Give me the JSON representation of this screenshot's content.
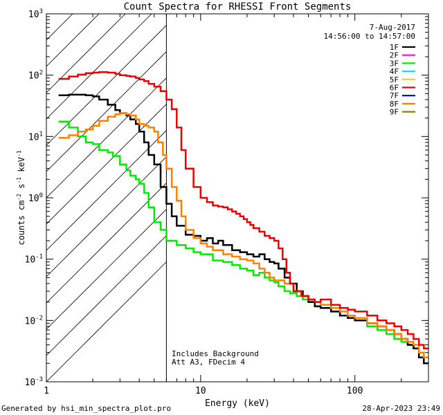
{
  "chart_data": {
    "type": "line",
    "title": "Count Spectra for RHESSI Front Segments",
    "xlabel": "Energy (keV)",
    "ylabel_parts": [
      "counts cm",
      "-2",
      " s",
      "-1",
      " keV",
      "-1"
    ],
    "xscale": "log",
    "yscale": "log",
    "xlim": [
      1,
      300
    ],
    "ylim": [
      0.001,
      1000
    ],
    "x_ticks": [
      {
        "value": 1,
        "label": "1"
      },
      {
        "value": 10,
        "label": "10"
      },
      {
        "value": 100,
        "label": "100"
      }
    ],
    "y_ticks": [
      {
        "value": 0.001,
        "base": "10",
        "exp": "-3"
      },
      {
        "value": 0.01,
        "base": "10",
        "exp": "-2"
      },
      {
        "value": 0.1,
        "base": "10",
        "exp": "-1"
      },
      {
        "value": 1,
        "base": "10",
        "exp": "0"
      },
      {
        "value": 10,
        "base": "10",
        "exp": "1"
      },
      {
        "value": 100,
        "base": "10",
        "exp": "2"
      },
      {
        "value": 1000,
        "base": "10",
        "exp": "3"
      }
    ],
    "date": "7-Aug-2017",
    "time_range": "14:56:00 to 14:57:00",
    "notes": [
      "Includes Background",
      "Att A3, FDecim  4"
    ],
    "footer_left": "Generated by hsi_min_spectra_plot.pro",
    "footer_right": "28-Apr-2023 23:49",
    "hatch_boundary_keV": 6,
    "legend": [
      {
        "label": "1F",
        "color": "#000000"
      },
      {
        "label": "2F",
        "color": "#ff00ff"
      },
      {
        "label": "3F",
        "color": "#00ee00"
      },
      {
        "label": "4F",
        "color": "#00e5ff"
      },
      {
        "label": "5F",
        "color": "#ffcc00"
      },
      {
        "label": "6F",
        "color": "#ee0000"
      },
      {
        "label": "7F",
        "color": "#0000cc"
      },
      {
        "label": "8F",
        "color": "#ff8000"
      },
      {
        "label": "9F",
        "color": "#808000"
      }
    ],
    "series": [
      {
        "name": "3F",
        "color": "#00ee00",
        "width": 2.5,
        "points": [
          [
            1.2,
            17.5
          ],
          [
            1.4,
            14
          ],
          [
            1.6,
            10
          ],
          [
            1.8,
            8
          ],
          [
            2.0,
            7.5
          ],
          [
            2.2,
            6
          ],
          [
            2.5,
            5.5
          ],
          [
            2.7,
            4.8
          ],
          [
            3.0,
            3.5
          ],
          [
            3.3,
            2.8
          ],
          [
            3.5,
            2.3
          ],
          [
            3.8,
            2.0
          ],
          [
            4.0,
            1.7
          ],
          [
            4.3,
            1.2
          ],
          [
            4.6,
            0.7
          ],
          [
            5.0,
            0.4
          ],
          [
            5.5,
            0.3
          ],
          [
            6.0,
            0.2
          ],
          [
            7.0,
            0.17
          ],
          [
            8.0,
            0.15
          ],
          [
            9.0,
            0.13
          ],
          [
            10,
            0.12
          ],
          [
            12,
            0.095
          ],
          [
            14,
            0.09
          ],
          [
            16,
            0.08
          ],
          [
            18,
            0.07
          ],
          [
            20,
            0.065
          ],
          [
            22,
            0.055
          ],
          [
            24,
            0.06
          ],
          [
            26,
            0.05
          ],
          [
            28,
            0.045
          ],
          [
            30,
            0.042
          ],
          [
            32,
            0.036
          ],
          [
            35,
            0.03
          ],
          [
            38,
            0.028
          ],
          [
            42,
            0.025
          ],
          [
            46,
            0.022
          ],
          [
            50,
            0.02
          ],
          [
            55,
            0.017
          ],
          [
            60,
            0.016
          ],
          [
            70,
            0.014
          ],
          [
            80,
            0.012
          ],
          [
            90,
            0.011
          ],
          [
            100,
            0.01
          ],
          [
            120,
            0.008
          ],
          [
            140,
            0.007
          ],
          [
            160,
            0.006
          ],
          [
            180,
            0.005
          ],
          [
            200,
            0.0045
          ],
          [
            220,
            0.004
          ],
          [
            240,
            0.0035
          ],
          [
            260,
            0.003
          ],
          [
            280,
            0.002
          ]
        ]
      },
      {
        "name": "1F",
        "color": "#000000",
        "width": 2.5,
        "points": [
          [
            1.2,
            47
          ],
          [
            1.4,
            48
          ],
          [
            1.6,
            48
          ],
          [
            1.8,
            47
          ],
          [
            2.0,
            45
          ],
          [
            2.2,
            40
          ],
          [
            2.5,
            33
          ],
          [
            2.8,
            27
          ],
          [
            3.0,
            24
          ],
          [
            3.3,
            22
          ],
          [
            3.5,
            19
          ],
          [
            3.8,
            16
          ],
          [
            4.0,
            12
          ],
          [
            4.3,
            8
          ],
          [
            4.6,
            5
          ],
          [
            5.0,
            3.5
          ],
          [
            5.5,
            1.5
          ],
          [
            6.0,
            0.8
          ],
          [
            6.5,
            0.5
          ],
          [
            7.0,
            0.35
          ],
          [
            8.0,
            0.25
          ],
          [
            9.0,
            0.24
          ],
          [
            10,
            0.2
          ],
          [
            11,
            0.22
          ],
          [
            12,
            0.18
          ],
          [
            13,
            0.2
          ],
          [
            14,
            0.17
          ],
          [
            16,
            0.14
          ],
          [
            18,
            0.13
          ],
          [
            20,
            0.12
          ],
          [
            22,
            0.11
          ],
          [
            24,
            0.12
          ],
          [
            26,
            0.1
          ],
          [
            28,
            0.09
          ],
          [
            30,
            0.085
          ],
          [
            32,
            0.07
          ],
          [
            35,
            0.05
          ],
          [
            38,
            0.04
          ],
          [
            42,
            0.03
          ],
          [
            46,
            0.025
          ],
          [
            50,
            0.02
          ],
          [
            55,
            0.017
          ],
          [
            60,
            0.016
          ],
          [
            70,
            0.014
          ],
          [
            80,
            0.012
          ],
          [
            90,
            0.011
          ],
          [
            100,
            0.01
          ],
          [
            120,
            0.009
          ],
          [
            140,
            0.008
          ],
          [
            160,
            0.007
          ],
          [
            180,
            0.006
          ],
          [
            200,
            0.005
          ],
          [
            220,
            0.004
          ],
          [
            240,
            0.0035
          ],
          [
            260,
            0.0025
          ],
          [
            280,
            0.002
          ]
        ]
      },
      {
        "name": "8F",
        "color": "#ff8000",
        "width": 2.5,
        "points": [
          [
            1.2,
            9.5
          ],
          [
            1.4,
            10.5
          ],
          [
            1.6,
            12
          ],
          [
            1.8,
            13
          ],
          [
            2.0,
            15
          ],
          [
            2.2,
            18
          ],
          [
            2.5,
            21
          ],
          [
            2.8,
            23
          ],
          [
            3.0,
            24
          ],
          [
            3.3,
            23
          ],
          [
            3.5,
            22
          ],
          [
            3.8,
            19
          ],
          [
            4.0,
            16
          ],
          [
            4.3,
            15
          ],
          [
            4.6,
            14
          ],
          [
            5.0,
            12
          ],
          [
            5.3,
            8
          ],
          [
            5.7,
            5
          ],
          [
            6.0,
            3
          ],
          [
            6.5,
            1.5
          ],
          [
            7.0,
            0.9
          ],
          [
            7.5,
            0.5
          ],
          [
            8.0,
            0.3
          ],
          [
            9.0,
            0.22
          ],
          [
            10,
            0.18
          ],
          [
            11,
            0.16
          ],
          [
            12,
            0.14
          ],
          [
            14,
            0.12
          ],
          [
            16,
            0.11
          ],
          [
            18,
            0.1
          ],
          [
            20,
            0.095
          ],
          [
            22,
            0.085
          ],
          [
            24,
            0.07
          ],
          [
            26,
            0.06
          ],
          [
            28,
            0.05
          ],
          [
            30,
            0.045
          ],
          [
            35,
            0.04
          ],
          [
            40,
            0.03
          ],
          [
            45,
            0.025
          ],
          [
            50,
            0.022
          ],
          [
            55,
            0.02
          ],
          [
            60,
            0.018
          ],
          [
            70,
            0.016
          ],
          [
            80,
            0.014
          ],
          [
            90,
            0.012
          ],
          [
            100,
            0.011
          ],
          [
            120,
            0.009
          ],
          [
            140,
            0.008
          ],
          [
            160,
            0.007
          ],
          [
            180,
            0.006
          ],
          [
            200,
            0.005
          ],
          [
            220,
            0.0045
          ],
          [
            240,
            0.004
          ],
          [
            260,
            0.003
          ],
          [
            280,
            0.0025
          ]
        ]
      },
      {
        "name": "6F",
        "color": "#ee0000",
        "width": 2.5,
        "points": [
          [
            1.2,
            87
          ],
          [
            1.4,
            95
          ],
          [
            1.6,
            102
          ],
          [
            1.8,
            108
          ],
          [
            2.0,
            110
          ],
          [
            2.2,
            112
          ],
          [
            2.5,
            110
          ],
          [
            2.8,
            105
          ],
          [
            3.0,
            100
          ],
          [
            3.3,
            97
          ],
          [
            3.5,
            95
          ],
          [
            3.8,
            90
          ],
          [
            4.0,
            85
          ],
          [
            4.3,
            80
          ],
          [
            4.6,
            72
          ],
          [
            5.0,
            65
          ],
          [
            5.5,
            55
          ],
          [
            6.0,
            40
          ],
          [
            6.5,
            28
          ],
          [
            7.0,
            14
          ],
          [
            7.5,
            6
          ],
          [
            8.0,
            3
          ],
          [
            9.0,
            1.5
          ],
          [
            10,
            1.0
          ],
          [
            11,
            0.85
          ],
          [
            12,
            0.75
          ],
          [
            13,
            0.72
          ],
          [
            14,
            0.7
          ],
          [
            15,
            0.65
          ],
          [
            16,
            0.6
          ],
          [
            17,
            0.55
          ],
          [
            18,
            0.5
          ],
          [
            19,
            0.45
          ],
          [
            20,
            0.4
          ],
          [
            21,
            0.36
          ],
          [
            22,
            0.32
          ],
          [
            24,
            0.28
          ],
          [
            26,
            0.24
          ],
          [
            28,
            0.22
          ],
          [
            30,
            0.2
          ],
          [
            32,
            0.15
          ],
          [
            34,
            0.1
          ],
          [
            36,
            0.06
          ],
          [
            38,
            0.04
          ],
          [
            40,
            0.03
          ],
          [
            45,
            0.025
          ],
          [
            50,
            0.022
          ],
          [
            55,
            0.02
          ],
          [
            60,
            0.022
          ],
          [
            70,
            0.018
          ],
          [
            80,
            0.016
          ],
          [
            90,
            0.015
          ],
          [
            100,
            0.014
          ],
          [
            120,
            0.012
          ],
          [
            140,
            0.01
          ],
          [
            160,
            0.009
          ],
          [
            180,
            0.008
          ],
          [
            200,
            0.007
          ],
          [
            220,
            0.006
          ],
          [
            240,
            0.005
          ],
          [
            260,
            0.004
          ],
          [
            280,
            0.0035
          ]
        ]
      }
    ]
  }
}
